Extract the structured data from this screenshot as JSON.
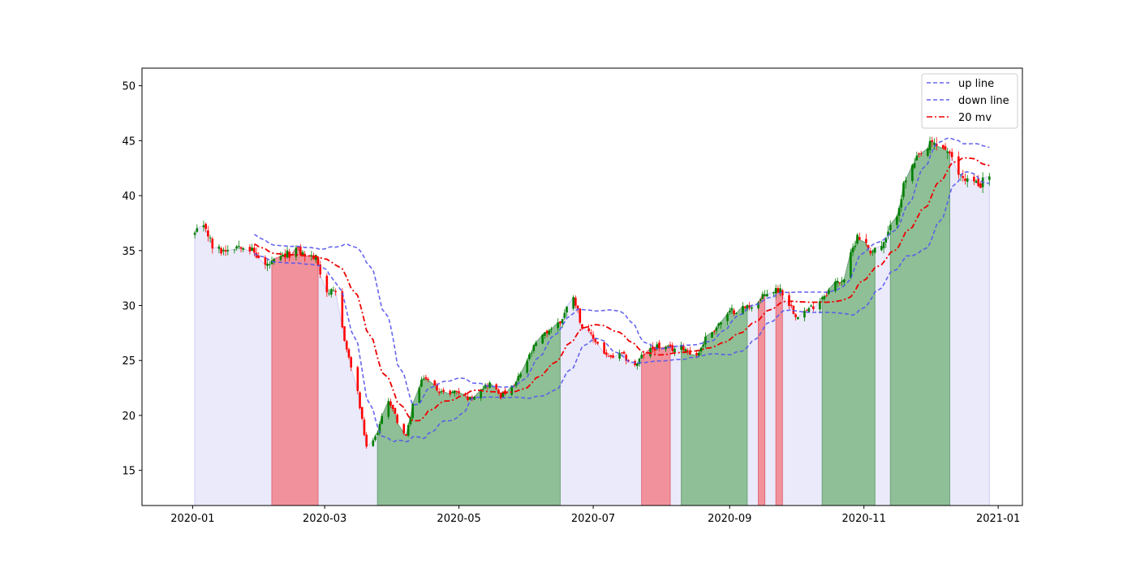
{
  "chart_data": {
    "type": "candlestick",
    "title": "",
    "xlabel": "",
    "ylabel": "",
    "xlim": [
      "2019-12-09",
      "2021-01-12"
    ],
    "ylim": [
      11.8,
      51.6
    ],
    "x_ticks": [
      "2020-01",
      "2020-03",
      "2020-05",
      "2020-07",
      "2020-09",
      "2020-11",
      "2021-01"
    ],
    "y_ticks": [
      15,
      20,
      25,
      30,
      35,
      40,
      45,
      50
    ],
    "grid": false,
    "legend": {
      "placement": "top-right",
      "entries": [
        {
          "label": "up line",
          "color": "#5555ee",
          "style": "dashed"
        },
        {
          "label": "down line",
          "color": "#5555ee",
          "style": "dashed"
        },
        {
          "label": "20 mv",
          "color": "#ee0000",
          "style": "dashdot"
        }
      ]
    },
    "colors": {
      "up_candle": "#008000",
      "down_candle": "#ff0000",
      "band_line": "#5555ee",
      "ma_line": "#ee0000",
      "fill_above": "#8fbf96",
      "fill_below": "#f0919b",
      "fill_inside": "#e8e8fb"
    },
    "close_anchors": [
      [
        "2020-01-02",
        36.5
      ],
      [
        "2020-01-07",
        37.1
      ],
      [
        "2020-01-10",
        35.3
      ],
      [
        "2020-01-14",
        35.0
      ],
      [
        "2020-01-20",
        35.4
      ],
      [
        "2020-01-24",
        35.6
      ],
      [
        "2020-01-28",
        35.0
      ],
      [
        "2020-02-03",
        33.6
      ],
      [
        "2020-02-07",
        33.9
      ],
      [
        "2020-02-12",
        34.5
      ],
      [
        "2020-02-17",
        35.1
      ],
      [
        "2020-02-21",
        34.6
      ],
      [
        "2020-02-26",
        34.3
      ],
      [
        "2020-03-02",
        31.3
      ],
      [
        "2020-03-06",
        31.0
      ],
      [
        "2020-03-11",
        26.0
      ],
      [
        "2020-03-16",
        22.0
      ],
      [
        "2020-03-20",
        17.0
      ],
      [
        "2020-03-24",
        18.0
      ],
      [
        "2020-03-30",
        21.5
      ],
      [
        "2020-04-03",
        19.5
      ],
      [
        "2020-04-07",
        18.0
      ],
      [
        "2020-04-10",
        21.0
      ],
      [
        "2020-04-15",
        23.5
      ],
      [
        "2020-04-20",
        22.6
      ],
      [
        "2020-04-24",
        22.0
      ],
      [
        "2020-04-30",
        22.2
      ],
      [
        "2020-05-06",
        21.5
      ],
      [
        "2020-05-11",
        22.5
      ],
      [
        "2020-05-15",
        22.9
      ],
      [
        "2020-05-20",
        21.8
      ],
      [
        "2020-05-26",
        22.6
      ],
      [
        "2020-06-01",
        25.0
      ],
      [
        "2020-06-05",
        26.5
      ],
      [
        "2020-06-11",
        27.8
      ],
      [
        "2020-06-16",
        28.5
      ],
      [
        "2020-06-22",
        31.0
      ],
      [
        "2020-06-26",
        28.0
      ],
      [
        "2020-07-02",
        26.8
      ],
      [
        "2020-07-08",
        25.2
      ],
      [
        "2020-07-14",
        25.5
      ],
      [
        "2020-07-20",
        24.5
      ],
      [
        "2020-07-24",
        25.6
      ],
      [
        "2020-07-30",
        26.3
      ],
      [
        "2020-08-05",
        26.0
      ],
      [
        "2020-08-11",
        26.2
      ],
      [
        "2020-08-17",
        25.4
      ],
      [
        "2020-08-21",
        27.0
      ],
      [
        "2020-08-27",
        28.3
      ],
      [
        "2020-09-02",
        29.5
      ],
      [
        "2020-09-08",
        29.8
      ],
      [
        "2020-09-14",
        30.3
      ],
      [
        "2020-09-18",
        31.2
      ],
      [
        "2020-09-24",
        31.5
      ],
      [
        "2020-10-01",
        29.2
      ],
      [
        "2020-10-07",
        29.6
      ],
      [
        "2020-10-13",
        30.8
      ],
      [
        "2020-10-19",
        32.0
      ],
      [
        "2020-10-23",
        32.5
      ],
      [
        "2020-10-29",
        36.5
      ],
      [
        "2020-11-04",
        35.0
      ],
      [
        "2020-11-10",
        35.5
      ],
      [
        "2020-11-16",
        38.5
      ],
      [
        "2020-11-20",
        41.5
      ],
      [
        "2020-11-26",
        43.5
      ],
      [
        "2020-12-02",
        44.7
      ],
      [
        "2020-12-08",
        44.3
      ],
      [
        "2020-12-14",
        42.0
      ],
      [
        "2020-12-18",
        41.5
      ],
      [
        "2020-12-23",
        41.0
      ],
      [
        "2020-12-28",
        41.8
      ]
    ],
    "regions_above_band": [
      [
        "2020-03-25",
        "2020-06-16"
      ],
      [
        "2020-08-10",
        "2020-09-09"
      ],
      [
        "2020-10-13",
        "2020-11-06"
      ],
      [
        "2020-11-13",
        "2020-12-10"
      ]
    ],
    "regions_below_band": [
      [
        "2020-02-06",
        "2020-02-27"
      ],
      [
        "2020-07-23",
        "2020-08-05"
      ],
      [
        "2020-09-14",
        "2020-09-17"
      ],
      [
        "2020-09-22",
        "2020-09-25"
      ]
    ]
  }
}
